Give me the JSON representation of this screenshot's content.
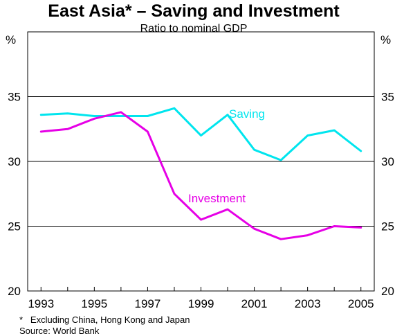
{
  "chart_data": {
    "type": "line",
    "title": "East Asia* – Saving and Investment",
    "subtitle": "Ratio to nominal GDP",
    "y_unit_left": "%",
    "y_unit_right": "%",
    "ylim": [
      20,
      40
    ],
    "yticks": [
      20,
      25,
      30,
      35
    ],
    "grid": "horizontal at 25, 30, 35",
    "x": [
      1993,
      1994,
      1995,
      1996,
      1997,
      1998,
      1999,
      2000,
      2001,
      2002,
      2003,
      2004,
      2005
    ],
    "xtick_labels": [
      "1993",
      "1995",
      "1997",
      "1999",
      "2001",
      "2003",
      "2005"
    ],
    "xtick_values": [
      1993,
      1995,
      1997,
      1999,
      2001,
      2003,
      2005
    ],
    "series": [
      {
        "name": "Saving",
        "color": "#00e5ee",
        "values": [
          33.6,
          33.7,
          33.5,
          33.5,
          33.5,
          34.1,
          32.0,
          33.6,
          30.9,
          30.1,
          32.0,
          32.4,
          30.8
        ]
      },
      {
        "name": "Investment",
        "color": "#e600e6",
        "values": [
          32.3,
          32.5,
          33.3,
          33.8,
          32.3,
          27.5,
          25.5,
          26.3,
          24.8,
          24.0,
          24.3,
          25.0,
          24.9
        ]
      }
    ],
    "footnotes": [
      "*   Excluding China, Hong Kong and Japan",
      "Source: World Bank"
    ]
  }
}
